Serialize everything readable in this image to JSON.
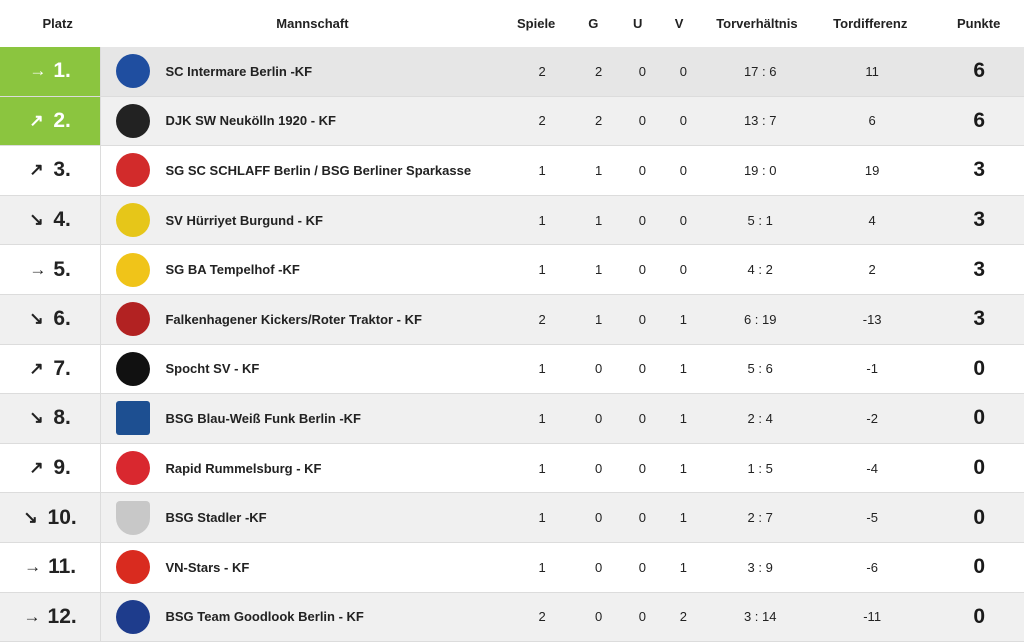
{
  "headers": {
    "platz": "Platz",
    "mannschaft": "Mannschaft",
    "spiele": "Spiele",
    "g": "G",
    "u": "U",
    "v": "V",
    "tor": "Torverhältnis",
    "diff": "Tordifferenz",
    "punkte": "Punkte"
  },
  "rows": [
    {
      "arrow": "→",
      "rank": "1.",
      "team": "SC Intermare Berlin -KF",
      "spiele": "2",
      "g": "2",
      "u": "0",
      "v": "0",
      "tor": "17 : 6",
      "diff": "11",
      "punkte": "6",
      "logo_color": "#1f4ea0"
    },
    {
      "arrow": "↗",
      "rank": "2.",
      "team": "DJK SW Neukölln 1920 - KF",
      "spiele": "2",
      "g": "2",
      "u": "0",
      "v": "0",
      "tor": "13 : 7",
      "diff": "6",
      "punkte": "6",
      "logo_color": "#222222"
    },
    {
      "arrow": "↗",
      "rank": "3.",
      "team": "SG SC SCHLAFF Berlin / BSG Berliner Sparkasse",
      "spiele": "1",
      "g": "1",
      "u": "0",
      "v": "0",
      "tor": "19 : 0",
      "diff": "19",
      "punkte": "3",
      "logo_color": "#d22b2b"
    },
    {
      "arrow": "↘",
      "rank": "4.",
      "team": "SV Hürriyet Burgund - KF",
      "spiele": "1",
      "g": "1",
      "u": "0",
      "v": "0",
      "tor": "5 : 1",
      "diff": "4",
      "punkte": "3",
      "logo_color": "#e6c619"
    },
    {
      "arrow": "→",
      "rank": "5.",
      "team": "SG BA Tempelhof -KF",
      "spiele": "1",
      "g": "1",
      "u": "0",
      "v": "0",
      "tor": "4 : 2",
      "diff": "2",
      "punkte": "3",
      "logo_color": "#f0c419"
    },
    {
      "arrow": "↘",
      "rank": "6.",
      "team": "Falkenhagener Kickers/Roter Traktor - KF",
      "spiele": "2",
      "g": "1",
      "u": "0",
      "v": "1",
      "tor": "6 : 19",
      "diff": "-13",
      "punkte": "3",
      "logo_color": "#b22222"
    },
    {
      "arrow": "↗",
      "rank": "7.",
      "team": "Spocht SV - KF",
      "spiele": "1",
      "g": "0",
      "u": "0",
      "v": "1",
      "tor": "5 : 6",
      "diff": "-1",
      "punkte": "0",
      "logo_color": "#111111"
    },
    {
      "arrow": "↘",
      "rank": "8.",
      "team": "BSG Blau-Weiß Funk Berlin -KF",
      "spiele": "1",
      "g": "0",
      "u": "0",
      "v": "1",
      "tor": "2 : 4",
      "diff": "-2",
      "punkte": "0",
      "logo_color": "#1d4f91"
    },
    {
      "arrow": "↗",
      "rank": "9.",
      "team": "Rapid Rummelsburg - KF",
      "spiele": "1",
      "g": "0",
      "u": "0",
      "v": "1",
      "tor": "1 : 5",
      "diff": "-4",
      "punkte": "0",
      "logo_color": "#d9282f"
    },
    {
      "arrow": "↘",
      "rank": "10.",
      "team": "BSG Stadler -KF",
      "spiele": "1",
      "g": "0",
      "u": "0",
      "v": "1",
      "tor": "2 : 7",
      "diff": "-5",
      "punkte": "0",
      "logo_color": "#c8c8c8"
    },
    {
      "arrow": "→",
      "rank": "11.",
      "team": "VN-Stars - KF",
      "spiele": "1",
      "g": "0",
      "u": "0",
      "v": "1",
      "tor": "3 : 9",
      "diff": "-6",
      "punkte": "0",
      "logo_color": "#d92b1f"
    },
    {
      "arrow": "→",
      "rank": "12.",
      "team": "BSG Team Goodlook Berlin - KF",
      "spiele": "2",
      "g": "0",
      "u": "0",
      "v": "2",
      "tor": "3 : 14",
      "diff": "-11",
      "punkte": "0",
      "logo_color": "#1e3c8c"
    }
  ],
  "colors": {
    "promotion": "#8bc53f",
    "row_alt": "#f0f0f0",
    "row_hl": "#e6e6e6"
  }
}
